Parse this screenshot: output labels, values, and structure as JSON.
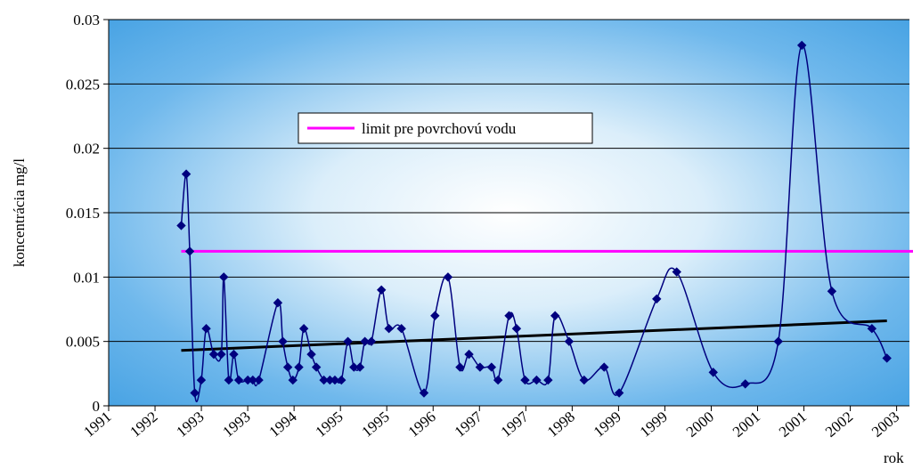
{
  "chart_data": {
    "type": "line",
    "title": "",
    "ylabel": "koncentrácia mg/l",
    "xlabel": "rok",
    "ylim": [
      0,
      0.03
    ],
    "yticks": [
      "0",
      "0.005",
      "0.01",
      "0.015",
      "0.02",
      "0.025",
      "0.03"
    ],
    "xtick_labels": [
      "1991",
      "1992",
      "1993",
      "1993",
      "1994",
      "1995",
      "1995",
      "1996",
      "1997",
      "1997",
      "1998",
      "1999",
      "1999",
      "2000",
      "2001",
      "2001",
      "2002",
      "2003"
    ],
    "grid": true,
    "legend": {
      "label": "limit pre povrchovú vodu",
      "color": "#ff00ff",
      "position": "upper-middle"
    },
    "colors": {
      "series": "#00007f",
      "limit": "#ff00ff",
      "trend": "#000000"
    },
    "series": [
      {
        "points": [
          [
            1992.45,
            0.014
          ],
          [
            1992.55,
            0.018
          ],
          [
            1992.62,
            0.012
          ],
          [
            1992.72,
            0.001
          ],
          [
            1992.85,
            0.002
          ],
          [
            1992.95,
            0.006
          ],
          [
            1993.1,
            0.004
          ],
          [
            1993.25,
            0.004
          ],
          [
            1993.3,
            0.01
          ],
          [
            1993.4,
            0.002
          ],
          [
            1993.5,
            0.004
          ],
          [
            1993.6,
            0.002
          ],
          [
            1993.78,
            0.002
          ],
          [
            1993.88,
            0.002
          ],
          [
            1994.0,
            0.002
          ],
          [
            1994.38,
            0.008
          ],
          [
            1994.48,
            0.005
          ],
          [
            1994.58,
            0.003
          ],
          [
            1994.68,
            0.002
          ],
          [
            1994.8,
            0.003
          ],
          [
            1994.9,
            0.006
          ],
          [
            1995.05,
            0.004
          ],
          [
            1995.15,
            0.003
          ],
          [
            1995.3,
            0.002
          ],
          [
            1995.42,
            0.002
          ],
          [
            1995.52,
            0.002
          ],
          [
            1995.65,
            0.002
          ],
          [
            1995.78,
            0.005
          ],
          [
            1995.9,
            0.003
          ],
          [
            1996.02,
            0.003
          ],
          [
            1996.12,
            0.005
          ],
          [
            1996.25,
            0.005
          ],
          [
            1996.45,
            0.009
          ],
          [
            1996.6,
            0.006
          ],
          [
            1996.85,
            0.006
          ],
          [
            1997.3,
            0.001
          ],
          [
            1997.52,
            0.007
          ],
          [
            1997.78,
            0.01
          ],
          [
            1998.02,
            0.003
          ],
          [
            1998.2,
            0.004
          ],
          [
            1998.42,
            0.003
          ],
          [
            1998.65,
            0.003
          ],
          [
            1998.78,
            0.002
          ],
          [
            1999.0,
            0.007
          ],
          [
            1999.15,
            0.006
          ],
          [
            1999.32,
            0.002
          ],
          [
            1999.55,
            0.002
          ],
          [
            1999.78,
            0.002
          ],
          [
            1999.92,
            0.007
          ],
          [
            2000.2,
            0.005
          ],
          [
            2000.5,
            0.002
          ],
          [
            2000.9,
            0.003
          ],
          [
            2001.2,
            0.001
          ],
          [
            2001.95,
            0.0083
          ],
          [
            2002.35,
            0.0104
          ],
          [
            2003.08,
            0.0026
          ],
          [
            2003.72,
            0.0017
          ],
          [
            2004.38,
            0.005
          ],
          [
            2004.85,
            0.028
          ],
          [
            2005.45,
            0.0089
          ],
          [
            2006.25,
            0.006
          ],
          [
            2006.55,
            0.0037
          ]
        ]
      }
    ],
    "limit_value": 0.012,
    "trend_line": [
      [
        1992.45,
        0.0043
      ],
      [
        2006.55,
        0.0066
      ]
    ]
  }
}
